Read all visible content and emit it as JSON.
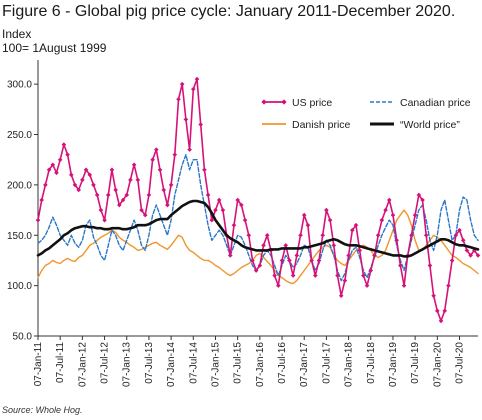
{
  "title": "Figure 6 - Global pig price cycle: January 2011-December 2020.",
  "ylabel_line1": "Index",
  "ylabel_line2": "100= 1August 1999",
  "source": "Source: Whole Hog.",
  "chart_data": {
    "type": "line",
    "ylim": [
      50,
      320
    ],
    "yticks": [
      50,
      100,
      150,
      200,
      250,
      300
    ],
    "ytick_labels": [
      "50.0",
      "100.0",
      "150.0",
      "200.0",
      "250.0",
      "300.0"
    ],
    "xlim_months": [
      0,
      119
    ],
    "xtick_labels": [
      "07-Jan-11",
      "07-Jul-11",
      "07-Jan-12",
      "07-Jul-12",
      "07-Jan-13",
      "07-Jul-13",
      "07-Jan-14",
      "07-Jul-14",
      "07-Jan-15",
      "07-Jul-15",
      "07-Jan-16",
      "07-Jul-16",
      "07-Jan-17",
      "07-Jul-17",
      "07-Jan-18",
      "07-Jul-18",
      "07-Jan-19",
      "07-Jul-19",
      "07-Jan-20",
      "07-Jul-20"
    ],
    "legend_position": "top-right",
    "series": [
      {
        "name": "US price",
        "color": "#d6127a",
        "style": "solid-markers",
        "values": [
          165,
          185,
          200,
          215,
          220,
          212,
          225,
          240,
          230,
          210,
          200,
          195,
          205,
          215,
          210,
          200,
          190,
          175,
          165,
          190,
          215,
          195,
          180,
          185,
          190,
          205,
          220,
          205,
          175,
          170,
          190,
          225,
          235,
          215,
          195,
          180,
          200,
          230,
          285,
          300,
          265,
          235,
          295,
          305,
          260,
          215,
          190,
          165,
          175,
          185,
          175,
          150,
          130,
          160,
          185,
          180,
          165,
          150,
          125,
          115,
          120,
          140,
          150,
          135,
          110,
          100,
          125,
          140,
          125,
          110,
          130,
          150,
          170,
          160,
          125,
          110,
          125,
          150,
          175,
          165,
          140,
          110,
          90,
          105,
          130,
          155,
          160,
          135,
          110,
          100,
          115,
          130,
          150,
          165,
          175,
          185,
          170,
          145,
          120,
          100,
          130,
          150,
          170,
          190,
          185,
          150,
          120,
          90,
          75,
          65,
          75,
          100,
          125,
          150,
          155,
          145,
          135,
          130,
          135,
          130
        ]
      },
      {
        "name": "Canadian price",
        "color": "#2a78c6",
        "style": "dashed",
        "values": [
          142,
          145,
          150,
          158,
          168,
          160,
          150,
          145,
          140,
          150,
          142,
          138,
          145,
          160,
          165,
          148,
          140,
          130,
          125,
          140,
          155,
          150,
          140,
          135,
          145,
          155,
          165,
          155,
          140,
          135,
          150,
          170,
          180,
          170,
          160,
          150,
          165,
          190,
          205,
          220,
          230,
          215,
          225,
          225,
          200,
          180,
          160,
          145,
          150,
          155,
          150,
          140,
          130,
          140,
          150,
          148,
          140,
          130,
          120,
          115,
          120,
          130,
          135,
          130,
          120,
          110,
          120,
          130,
          125,
          118,
          122,
          130,
          140,
          138,
          125,
          115,
          122,
          135,
          145,
          140,
          130,
          115,
          105,
          112,
          125,
          135,
          138,
          128,
          115,
          108,
          118,
          128,
          140,
          150,
          158,
          165,
          160,
          140,
          125,
          115,
          130,
          145,
          160,
          175,
          180,
          165,
          145,
          135,
          150,
          175,
          185,
          165,
          145,
          150,
          175,
          188,
          185,
          165,
          150,
          145
        ]
      },
      {
        "name": "Danish price",
        "color": "#f0962b",
        "style": "solid",
        "values": [
          108,
          115,
          120,
          122,
          125,
          123,
          122,
          125,
          127,
          125,
          124,
          128,
          130,
          135,
          140,
          142,
          145,
          148,
          150,
          152,
          155,
          153,
          148,
          145,
          143,
          140,
          138,
          135,
          136,
          138,
          140,
          142,
          143,
          140,
          138,
          136,
          140,
          145,
          150,
          148,
          140,
          135,
          133,
          130,
          127,
          125,
          125,
          123,
          120,
          118,
          115,
          112,
          110,
          112,
          115,
          118,
          120,
          122,
          125,
          130,
          132,
          128,
          124,
          120,
          115,
          110,
          108,
          105,
          103,
          102,
          105,
          110,
          115,
          120,
          125,
          130,
          135,
          138,
          140,
          138,
          130,
          125,
          122,
          120,
          125,
          130,
          135,
          138,
          140,
          138,
          135,
          130,
          128,
          130,
          135,
          145,
          155,
          165,
          170,
          175,
          170,
          160,
          145,
          135,
          135,
          140,
          145,
          150,
          148,
          145,
          140,
          135,
          130,
          128,
          125,
          122,
          120,
          118,
          115,
          112
        ]
      },
      {
        "name": "“World price”",
        "color": "#111111",
        "style": "thick",
        "values": [
          130,
          132,
          135,
          137,
          140,
          143,
          146,
          150,
          152,
          155,
          157,
          158,
          159,
          159,
          158,
          158,
          157,
          157,
          156,
          156,
          157,
          157,
          157,
          156,
          156,
          157,
          158,
          160,
          160,
          160,
          161,
          163,
          165,
          166,
          166,
          166,
          170,
          173,
          176,
          179,
          181,
          183,
          184,
          184,
          183,
          182,
          178,
          172,
          165,
          160,
          155,
          150,
          147,
          145,
          143,
          140,
          138,
          137,
          136,
          135,
          135,
          135,
          135,
          136,
          136,
          136,
          137,
          137,
          137,
          137,
          137,
          137,
          138,
          138,
          139,
          140,
          141,
          142,
          144,
          145,
          146,
          145,
          143,
          141,
          140,
          140,
          140,
          139,
          138,
          137,
          136,
          135,
          134,
          133,
          132,
          131,
          130,
          130,
          130,
          129,
          129,
          130,
          132,
          134,
          136,
          138,
          140,
          142,
          144,
          146,
          146,
          145,
          143,
          141,
          140,
          140,
          139,
          138,
          137,
          136
        ]
      }
    ]
  }
}
